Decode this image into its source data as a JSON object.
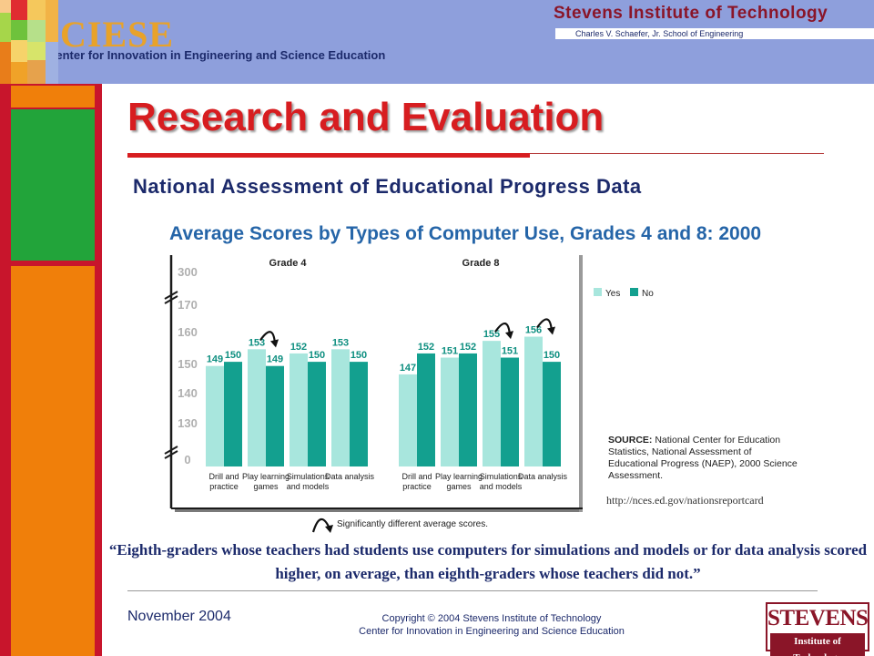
{
  "header": {
    "logo": "CIESE",
    "center_name": "Center for Innovation in Engineering and Science Education",
    "institute": "Stevens Institute of Technology",
    "school": "Charles V. Schaefer, Jr. School of Engineering"
  },
  "title": "Research and Evaluation",
  "subtitle": "National Assessment of Educational Progress Data",
  "colors": {
    "yes": "#a8e6dd",
    "no": "#13a08f",
    "title": "#d71d20",
    "navy": "#1c2a6b"
  },
  "chart_data": {
    "type": "bar",
    "title": "Average Scores by Types of Computer Use, Grades 4 and 8: 2000",
    "axis_ticks": [
      "0",
      "130",
      "140",
      "150",
      "160",
      "170",
      "300"
    ],
    "axis_break": true,
    "ylim": [
      125,
      172
    ],
    "grid": false,
    "legend_position": "top-right",
    "series_names": [
      "Yes",
      "No"
    ],
    "groups": [
      {
        "label": "Grade 4",
        "categories": [
          "Drill and practice",
          "Play learning games",
          "Simulations and models",
          "Data analysis"
        ],
        "yes": [
          149,
          153,
          152,
          153
        ],
        "no": [
          150,
          149,
          150,
          150
        ],
        "significant": [
          false,
          true,
          false,
          false
        ]
      },
      {
        "label": "Grade 8",
        "categories": [
          "Drill and practice",
          "Play learning games",
          "Simulations and models",
          "Data analysis"
        ],
        "yes": [
          147,
          151,
          155,
          156
        ],
        "no": [
          152,
          152,
          151,
          150
        ],
        "significant": [
          false,
          false,
          true,
          true
        ]
      }
    ],
    "significance_note": "Significantly different average scores.",
    "source_lines": [
      "National Center for Education",
      "Statistics, National Assessment of",
      "Educational Progress (NAEP), 2000 Science",
      "Assessment."
    ],
    "source_prefix": "SOURCE:",
    "url": "http://nces.ed.gov/nationsreportcard"
  },
  "quote": "“Eighth-graders whose teachers had students use computers for simulations and models or for data analysis scored higher, on average, than eighth-graders whose teachers did not.”",
  "footer": {
    "date": "November 2004",
    "copyright_line1": "Copyright © 2004 Stevens Institute of Technology",
    "copyright_line2": "Center for Innovation in Engineering and Science Education",
    "logo_main": "STEVENS",
    "logo_sub": "Institute of Technology"
  }
}
